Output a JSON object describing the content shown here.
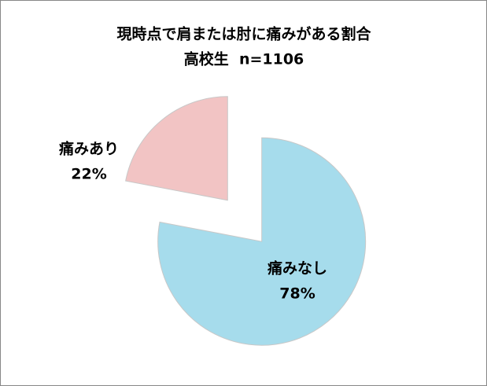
{
  "chart_data": {
    "type": "pie",
    "title": "現時点で肩または肘に痛みがある割合",
    "subtitle": "高校生  n=1106",
    "categories": [
      "痛みあり",
      "痛みなし"
    ],
    "values": [
      22,
      78
    ],
    "value_labels": [
      "22%",
      "78%"
    ],
    "colors": [
      "#f2c4c4",
      "#a6dcec"
    ]
  }
}
